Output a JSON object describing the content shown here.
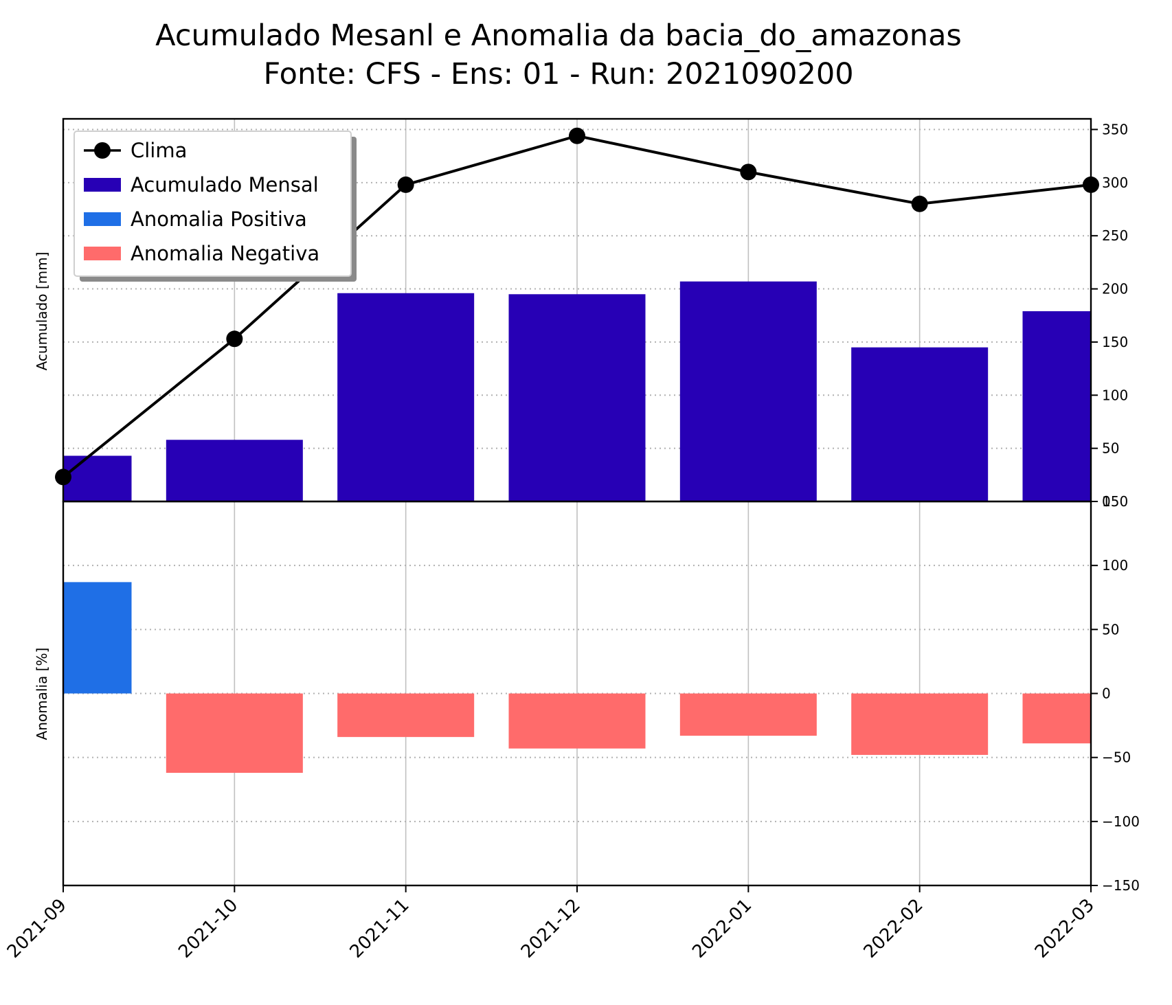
{
  "title_line1": "Acumulado Mesanl e Anomalia da bacia_do_amazonas",
  "title_line2": "Fonte: CFS - Ens: 01 - Run: 2021090200",
  "colors": {
    "clima": "#000000",
    "acumulado": "#2700b5",
    "anomalia_positiva": "#1f6fe6",
    "anomalia_negativa": "#ff6b6b",
    "grid": "#b0b0b0",
    "vgrid": "#c0c0c0"
  },
  "chart_data": [
    {
      "type": "bar",
      "panel": "top",
      "ylabel": "Acumulado [mm]",
      "ylim": [
        0,
        360
      ],
      "yticks": [
        0,
        50,
        100,
        150,
        200,
        250,
        300,
        350
      ],
      "ytick_labels": [
        "0",
        "50",
        "100",
        "150",
        "200",
        "250",
        "300",
        "350"
      ],
      "grid": "horizontal dotted",
      "categories": [
        "2021-09",
        "2021-10",
        "2021-11",
        "2021-12",
        "2022-01",
        "2022-02",
        "2022-03"
      ],
      "series": [
        {
          "name": "Acumulado Mensal",
          "type": "bar",
          "values": [
            43,
            58,
            196,
            195,
            207,
            145,
            179
          ]
        },
        {
          "name": "Clima",
          "type": "line",
          "values": [
            23,
            153,
            298,
            344,
            310,
            280,
            298
          ]
        }
      ],
      "legend": {
        "placement": "top-left",
        "entries": [
          "Clima",
          "Acumulado Mensal",
          "Anomalia Positiva",
          "Anomalia Negativa"
        ]
      }
    },
    {
      "type": "bar",
      "panel": "bottom",
      "ylabel": "Anomalia [%]",
      "ylim": [
        -150,
        150
      ],
      "yticks": [
        -150,
        -100,
        -50,
        0,
        50,
        100,
        150
      ],
      "ytick_labels": [
        "−150",
        "−100",
        "−50",
        "0",
        "50",
        "100",
        "150"
      ],
      "grid": "horizontal dotted",
      "categories": [
        "2021-09",
        "2021-10",
        "2021-11",
        "2021-12",
        "2022-01",
        "2022-02",
        "2022-03"
      ],
      "series": [
        {
          "name": "Anomalia",
          "values": [
            87,
            -62,
            -34,
            -43,
            -33,
            -48,
            -39
          ]
        }
      ]
    }
  ]
}
